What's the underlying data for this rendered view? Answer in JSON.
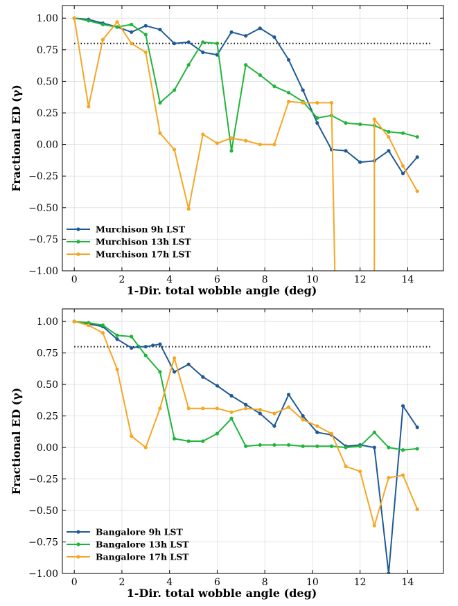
{
  "chart_data": [
    {
      "type": "line",
      "xlabel": "1-Dir. total wobble angle (deg)",
      "ylabel": "Fractional ED (γ)",
      "xlim": [
        -0.5,
        15.5
      ],
      "ylim": [
        -1.0,
        1.1
      ],
      "xticks": [
        0,
        2,
        4,
        6,
        8,
        10,
        12,
        14
      ],
      "yticks": [
        -1.0,
        -0.75,
        -0.5,
        -0.25,
        0.0,
        0.25,
        0.5,
        0.75,
        1.0
      ],
      "ytick_labels": [
        "−1.00",
        "−0.75",
        "−0.50",
        "−0.25",
        "0.00",
        "0.25",
        "0.50",
        "0.75",
        "1.00"
      ],
      "grid": true,
      "legend_position": "lower-left",
      "reference_line": {
        "y": 0.8,
        "x_range": [
          0,
          15
        ],
        "style": "dotted",
        "color": "#000000"
      },
      "series": [
        {
          "name": "Murchison 9h LST",
          "color": "#1f5a96",
          "x": [
            0,
            0.6,
            1.2,
            1.8,
            2.4,
            3.0,
            3.6,
            4.2,
            4.8,
            5.4,
            6.0,
            6.6,
            7.2,
            7.8,
            8.4,
            9.0,
            9.6,
            10.2,
            10.8,
            11.4,
            12.0,
            12.6,
            13.2,
            13.8,
            14.4
          ],
          "y": [
            1.0,
            0.99,
            0.96,
            0.93,
            0.89,
            0.94,
            0.91,
            0.8,
            0.81,
            0.73,
            0.71,
            0.89,
            0.86,
            0.92,
            0.85,
            0.67,
            0.43,
            0.17,
            -0.04,
            -0.05,
            -0.14,
            -0.13,
            -0.05,
            -0.23,
            -0.1
          ]
        },
        {
          "name": "Murchison 13h LST",
          "color": "#1fb53a",
          "x": [
            0,
            0.6,
            1.2,
            1.8,
            2.4,
            3.0,
            3.6,
            4.2,
            4.8,
            5.4,
            6.0,
            6.6,
            7.2,
            7.8,
            8.4,
            9.0,
            9.6,
            10.2,
            10.8,
            11.4,
            12.0,
            12.6,
            13.2,
            13.8,
            14.4
          ],
          "y": [
            1.0,
            0.98,
            0.95,
            0.93,
            0.95,
            0.87,
            0.33,
            0.43,
            0.63,
            0.81,
            0.8,
            -0.05,
            0.63,
            0.55,
            0.46,
            0.41,
            0.34,
            0.21,
            0.23,
            0.17,
            0.16,
            0.15,
            0.1,
            0.09,
            0.06
          ]
        },
        {
          "name": "Murchison 17h LST",
          "color": "#f5a623",
          "x": [
            0,
            0.6,
            1.2,
            1.8,
            2.4,
            3.0,
            3.6,
            4.2,
            4.8,
            5.4,
            6.0,
            6.6,
            7.2,
            7.8,
            8.4,
            9.0,
            9.6,
            10.2,
            10.8,
            10.95,
            12.6,
            12.6,
            13.2,
            13.8,
            14.4
          ],
          "y": [
            1.0,
            0.3,
            0.83,
            0.97,
            0.8,
            0.73,
            0.09,
            -0.04,
            -0.51,
            0.08,
            0.01,
            0.05,
            0.03,
            0.0,
            0.0,
            0.34,
            0.33,
            0.33,
            0.33,
            -1.1,
            -1.1,
            0.2,
            0.06,
            -0.17,
            -0.37
          ],
          "marker_mask": [
            1,
            1,
            1,
            1,
            1,
            1,
            1,
            1,
            1,
            1,
            1,
            1,
            1,
            1,
            1,
            1,
            1,
            1,
            1,
            0,
            0,
            1,
            1,
            1,
            1
          ]
        }
      ]
    },
    {
      "type": "line",
      "xlabel": "1-Dir. total wobble angle (deg)",
      "ylabel": "Fractional ED (γ)",
      "xlim": [
        -0.5,
        15.5
      ],
      "ylim": [
        -1.0,
        1.1
      ],
      "xticks": [
        0,
        2,
        4,
        6,
        8,
        10,
        12,
        14
      ],
      "yticks": [
        -1.0,
        -0.75,
        -0.5,
        -0.25,
        0.0,
        0.25,
        0.5,
        0.75,
        1.0
      ],
      "ytick_labels": [
        "−1.00",
        "−0.75",
        "−0.50",
        "−0.25",
        "0.00",
        "0.25",
        "0.50",
        "0.75",
        "1.00"
      ],
      "grid": true,
      "legend_position": "lower-left",
      "reference_line": {
        "y": 0.8,
        "x_range": [
          0,
          15
        ],
        "style": "dotted",
        "color": "#000000"
      },
      "series": [
        {
          "name": "Bangalore 9h LST",
          "color": "#1f5a96",
          "x": [
            0,
            0.6,
            1.2,
            1.8,
            2.4,
            2.7,
            3.0,
            3.3,
            3.6,
            4.2,
            4.8,
            5.4,
            6.0,
            6.6,
            7.2,
            7.8,
            8.4,
            9.0,
            9.6,
            10.2,
            10.8,
            11.4,
            12.0,
            12.6,
            13.2,
            13.8,
            14.4
          ],
          "y": [
            1.0,
            0.98,
            0.96,
            0.86,
            0.79,
            0.8,
            0.8,
            0.81,
            0.82,
            0.6,
            0.66,
            0.56,
            0.49,
            0.41,
            0.34,
            0.27,
            0.17,
            0.42,
            0.25,
            0.12,
            0.1,
            0.01,
            0.02,
            0.0,
            -1.0,
            0.33,
            0.16
          ]
        },
        {
          "name": "Bangalore 13h LST",
          "color": "#1fb53a",
          "x": [
            0,
            0.6,
            1.2,
            1.8,
            2.4,
            3.0,
            3.6,
            4.2,
            4.8,
            5.4,
            6.0,
            6.6,
            7.2,
            7.8,
            8.4,
            9.0,
            9.6,
            10.2,
            10.8,
            11.4,
            12.0,
            12.6,
            13.2,
            13.8,
            14.4
          ],
          "y": [
            1.0,
            0.99,
            0.97,
            0.89,
            0.88,
            0.73,
            0.6,
            0.07,
            0.05,
            0.05,
            0.11,
            0.23,
            0.01,
            0.02,
            0.02,
            0.02,
            0.01,
            0.01,
            0.01,
            0.0,
            0.01,
            0.12,
            0.0,
            -0.02,
            -0.01
          ]
        },
        {
          "name": "Bangalore 17h LST",
          "color": "#f5a623",
          "x": [
            0,
            0.6,
            1.2,
            1.8,
            2.4,
            3.0,
            3.6,
            4.2,
            4.8,
            5.4,
            6.0,
            6.6,
            7.2,
            7.8,
            8.4,
            9.0,
            9.6,
            10.2,
            10.8,
            11.4,
            12.0,
            12.6,
            13.2,
            13.8,
            14.4
          ],
          "y": [
            1.0,
            0.97,
            0.91,
            0.62,
            0.09,
            0.0,
            0.31,
            0.71,
            0.31,
            0.31,
            0.31,
            0.28,
            0.31,
            0.3,
            0.27,
            0.32,
            0.22,
            0.17,
            0.11,
            -0.15,
            -0.19,
            -0.62,
            -0.24,
            -0.22,
            -0.49
          ]
        }
      ]
    }
  ]
}
